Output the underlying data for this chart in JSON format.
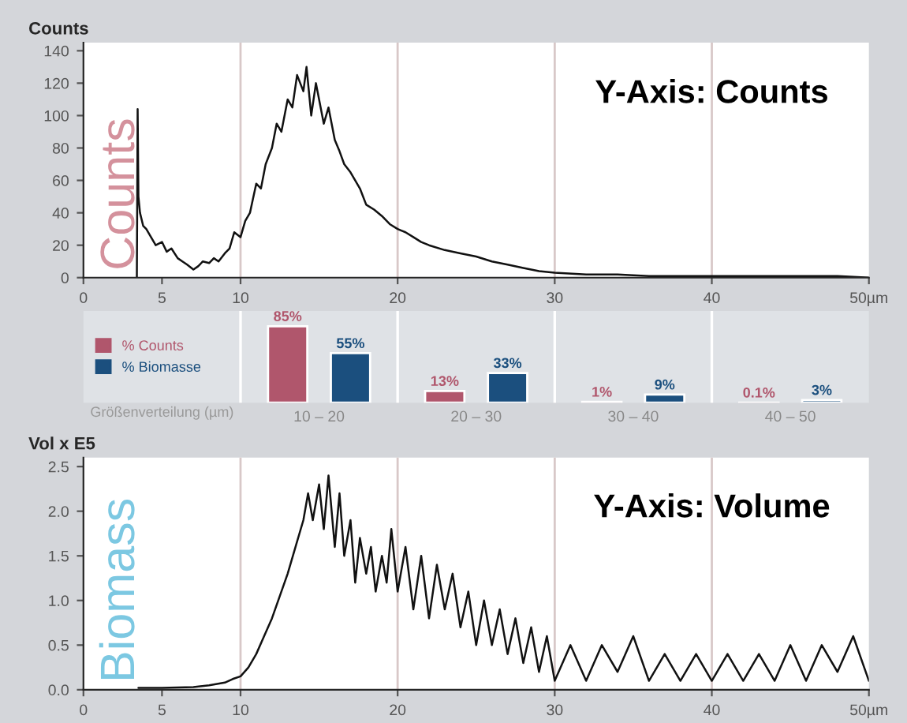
{
  "chart_data": [
    {
      "type": "line",
      "ylabel": "Counts",
      "annotations": [
        "Counts",
        "Y-Axis: Counts"
      ],
      "xlim": [
        0,
        50
      ],
      "xticks": [
        0,
        5,
        10,
        20,
        30,
        40,
        {
          "value": 50,
          "label": "50µm"
        }
      ],
      "ylim": [
        0,
        145
      ],
      "yticks": [
        0,
        20,
        40,
        60,
        80,
        100,
        120,
        140
      ],
      "ref_lines": [
        {
          "axis": "x",
          "value": 10,
          "color": "#d8c8c8"
        },
        {
          "axis": "x",
          "value": 20,
          "color": "#d8c8c8"
        },
        {
          "axis": "x",
          "value": 30,
          "color": "#d8c8c8"
        },
        {
          "axis": "x",
          "value": 40,
          "color": "#d8c8c8"
        }
      ],
      "series": [
        {
          "color": "#111111",
          "x": [
            3.4,
            3.45,
            3.5,
            3.6,
            3.8,
            4.0,
            4.3,
            4.6,
            5.0,
            5.3,
            5.6,
            6.0,
            6.3,
            6.6,
            7.0,
            7.3,
            7.6,
            8.0,
            8.3,
            8.6,
            9.0,
            9.3,
            9.6,
            10.0,
            10.3,
            10.6,
            11.0,
            11.3,
            11.6,
            12.0,
            12.3,
            12.6,
            13.0,
            13.3,
            13.6,
            14.0,
            14.2,
            14.5,
            14.8,
            15.0,
            15.3,
            15.6,
            16.0,
            16.3,
            16.6,
            17.0,
            17.3,
            17.6,
            18.0,
            18.5,
            19.0,
            19.5,
            20.0,
            20.5,
            21.0,
            21.5,
            22.0,
            23.0,
            24.0,
            25.0,
            26.0,
            27.0,
            28.0,
            29.0,
            30.0,
            32.0,
            34.0,
            36.0,
            38.0,
            40.0,
            42.0,
            44.0,
            46.0,
            48.0,
            50.0
          ],
          "values": [
            0,
            104,
            50,
            40,
            32,
            30,
            25,
            20,
            22,
            16,
            18,
            12,
            10,
            8,
            5,
            7,
            10,
            9,
            12,
            10,
            15,
            18,
            28,
            25,
            35,
            40,
            58,
            55,
            70,
            80,
            95,
            90,
            110,
            105,
            125,
            115,
            130,
            100,
            120,
            110,
            95,
            105,
            85,
            78,
            70,
            65,
            60,
            55,
            45,
            42,
            38,
            33,
            30,
            28,
            25,
            22,
            20,
            17,
            15,
            13,
            10,
            8,
            6,
            4,
            3,
            2,
            2,
            1,
            1,
            1,
            1,
            1,
            1,
            1,
            0
          ]
        }
      ]
    },
    {
      "type": "bar",
      "categories": [
        "10 – 20",
        "20 – 30",
        "30 – 40",
        "40 – 50"
      ],
      "xlabel": "Größenverteilung (µm)",
      "legend": "left",
      "series": [
        {
          "name": "% Counts",
          "color": "#b0566c",
          "values": [
            85,
            13,
            1,
            0.1
          ],
          "value_labels": [
            "85%",
            "13%",
            "1%",
            "0.1%"
          ]
        },
        {
          "name": "% Biomasse",
          "color": "#1b4f7e",
          "values": [
            55,
            33,
            9,
            3
          ],
          "value_labels": [
            "55%",
            "33%",
            "9%",
            "3%"
          ]
        }
      ]
    },
    {
      "type": "line",
      "ylabel": "Vol x E5",
      "annotations": [
        "Biomass",
        "Y-Axis: Volume"
      ],
      "xlim": [
        0,
        50
      ],
      "xticks": [
        0,
        5,
        10,
        20,
        30,
        40,
        {
          "value": 50,
          "label": "50µm"
        }
      ],
      "ylim": [
        0,
        2.6
      ],
      "yticks": [
        {
          "value": 0,
          "label": "0.0"
        },
        0.5,
        {
          "value": 1,
          "label": "1.0"
        },
        1.5,
        {
          "value": 2,
          "label": "2.0"
        },
        2.5
      ],
      "ref_lines": [
        {
          "axis": "x",
          "value": 10,
          "color": "#d8c8c8"
        },
        {
          "axis": "x",
          "value": 20,
          "color": "#d8c8c8"
        },
        {
          "axis": "x",
          "value": 30,
          "color": "#d8c8c8"
        },
        {
          "axis": "x",
          "value": 40,
          "color": "#d8c8c8"
        }
      ],
      "series": [
        {
          "color": "#111111",
          "x": [
            3.5,
            5.0,
            7.0,
            8.0,
            9.0,
            9.5,
            10.0,
            10.5,
            11.0,
            11.5,
            12.0,
            12.5,
            13.0,
            13.5,
            14.0,
            14.3,
            14.6,
            15.0,
            15.3,
            15.6,
            16.0,
            16.3,
            16.6,
            17.0,
            17.3,
            17.6,
            18.0,
            18.3,
            18.6,
            19.0,
            19.3,
            19.6,
            20.0,
            20.5,
            21.0,
            21.5,
            22.0,
            22.5,
            23.0,
            23.5,
            24.0,
            24.5,
            25.0,
            25.5,
            26.0,
            26.5,
            27.0,
            27.5,
            28.0,
            28.5,
            29.0,
            29.5,
            30.0,
            31.0,
            32.0,
            33.0,
            34.0,
            35.0,
            36.0,
            37.0,
            38.0,
            39.0,
            40.0,
            41.0,
            42.0,
            43.0,
            44.0,
            45.0,
            46.0,
            47.0,
            48.0,
            49.0,
            50.0
          ],
          "values": [
            0.02,
            0.02,
            0.03,
            0.05,
            0.08,
            0.12,
            0.15,
            0.25,
            0.4,
            0.6,
            0.8,
            1.05,
            1.3,
            1.6,
            1.9,
            2.2,
            1.9,
            2.3,
            1.8,
            2.4,
            1.6,
            2.2,
            1.5,
            1.9,
            1.2,
            1.7,
            1.3,
            1.6,
            1.1,
            1.5,
            1.2,
            1.8,
            1.1,
            1.6,
            0.9,
            1.5,
            0.8,
            1.4,
            0.9,
            1.3,
            0.7,
            1.1,
            0.5,
            1.0,
            0.5,
            0.9,
            0.4,
            0.8,
            0.3,
            0.7,
            0.2,
            0.6,
            0.1,
            0.5,
            0.1,
            0.5,
            0.2,
            0.6,
            0.1,
            0.4,
            0.1,
            0.4,
            0.1,
            0.4,
            0.1,
            0.4,
            0.1,
            0.5,
            0.1,
            0.5,
            0.2,
            0.6,
            0.1
          ]
        }
      ]
    }
  ]
}
